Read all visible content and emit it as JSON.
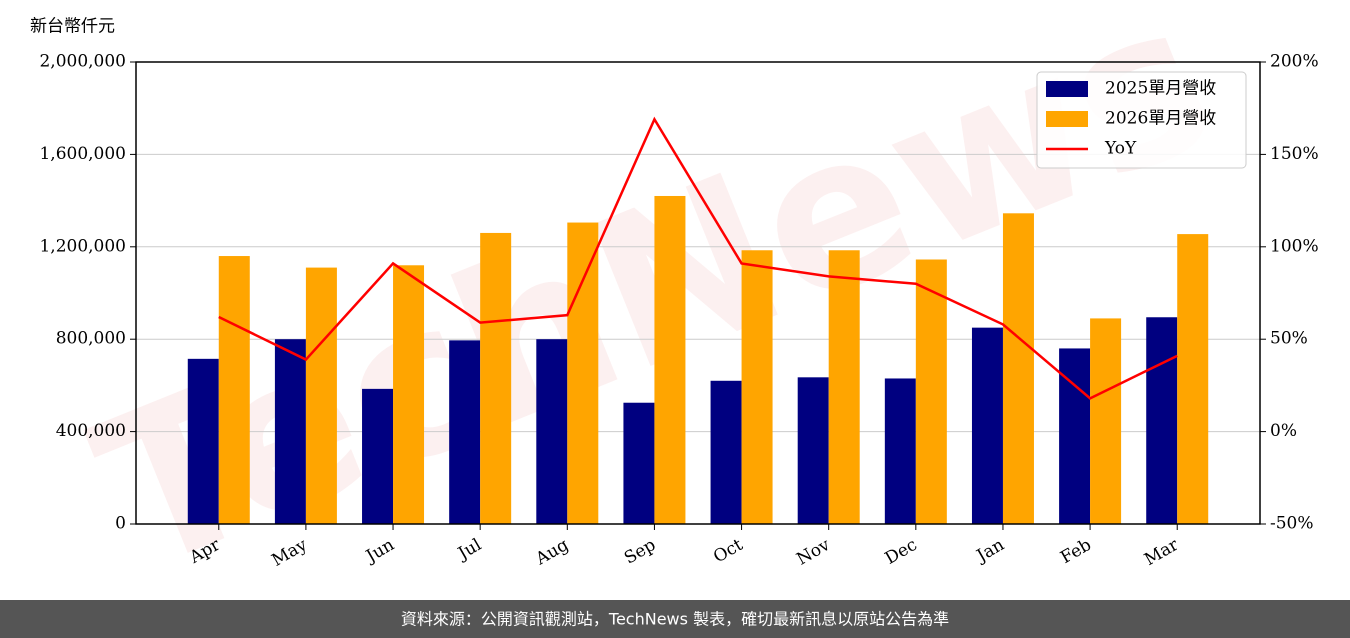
{
  "chart_data": {
    "type": "bar_line",
    "y_label": "新台幣仟元",
    "watermark": "TechNews",
    "source": "資料來源：公開資訊觀測站，TechNews 製表，確切最新訊息以原站公告為準",
    "categories": [
      "Apr",
      "May",
      "Jun",
      "Jul",
      "Aug",
      "Sep",
      "Oct",
      "Nov",
      "Dec",
      "Jan",
      "Feb",
      "Mar"
    ],
    "series": [
      {
        "name": "2025單月營收",
        "color": "#000080",
        "type": "bar",
        "values": [
          715000,
          800000,
          585000,
          795000,
          800000,
          525000,
          620000,
          635000,
          630000,
          850000,
          760000,
          895000
        ]
      },
      {
        "name": "2026單月營收",
        "color": "#ffa500",
        "type": "bar",
        "values": [
          1160000,
          1110000,
          1120000,
          1260000,
          1305000,
          1420000,
          1185000,
          1185000,
          1145000,
          1345000,
          890000,
          1255000
        ]
      },
      {
        "name": "YoY",
        "color": "#ff0000",
        "type": "line",
        "axis": "y2",
        "values": [
          62,
          39,
          91,
          59,
          63,
          169,
          91,
          84,
          80,
          58,
          18,
          41
        ]
      }
    ],
    "ylim": [
      0,
      2000000
    ],
    "yticks": [
      0,
      {
        "value": 400000,
        "label": "400,000"
      },
      {
        "value": 800000,
        "label": "800,000"
      },
      {
        "value": 1200000,
        "label": "1,200,000"
      },
      {
        "value": 1600000,
        "label": "1,600,000"
      },
      {
        "value": 2000000,
        "label": "2,000,000"
      }
    ],
    "y2lim": [
      -50,
      200
    ],
    "y2ticks": [
      {
        "value": -50,
        "label": "-50%"
      },
      {
        "value": 0,
        "label": "0%"
      },
      {
        "value": 50,
        "label": "50%"
      },
      {
        "value": 100,
        "label": "100%"
      },
      {
        "value": 150,
        "label": "150%"
      },
      {
        "value": 200,
        "label": "200%"
      }
    ],
    "grid": true,
    "legend": "upper right"
  }
}
